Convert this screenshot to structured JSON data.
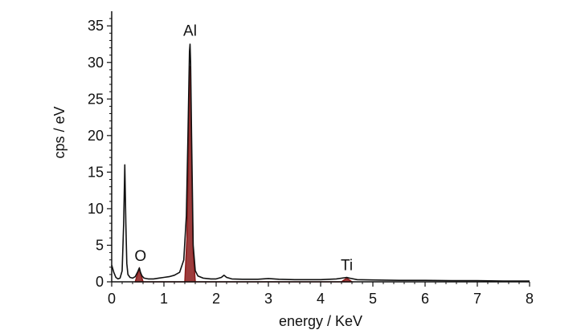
{
  "chart_data": {
    "type": "line",
    "title": "",
    "xlabel": "energy / KeV",
    "ylabel": "cps / eV",
    "xlim": [
      0,
      8
    ],
    "ylim": [
      0,
      37
    ],
    "xticks": [
      0,
      1,
      2,
      3,
      4,
      5,
      6,
      7,
      8
    ],
    "xtick_labels": [
      "0",
      "1",
      "2",
      "3",
      "4",
      "5",
      "6",
      "7",
      "8"
    ],
    "yticks": [
      0,
      5,
      10,
      15,
      20,
      25,
      30,
      35
    ],
    "ytick_labels": [
      "0",
      "5",
      "10",
      "15",
      "20",
      "25",
      "30",
      "35"
    ],
    "grid": false,
    "legend": "none",
    "colors": {
      "spectrum": "#111111",
      "fit": "#8b1a1a",
      "axis": "#111111"
    },
    "series": [
      {
        "name": "",
        "color": "#111111",
        "x": [
          0.0,
          0.04,
          0.08,
          0.12,
          0.16,
          0.2,
          0.23,
          0.25,
          0.27,
          0.29,
          0.31,
          0.35,
          0.4,
          0.45,
          0.5,
          0.53,
          0.55,
          0.58,
          0.62,
          0.7,
          0.8,
          0.9,
          1.0,
          1.1,
          1.2,
          1.3,
          1.38,
          1.43,
          1.46,
          1.48,
          1.49,
          1.5,
          1.51,
          1.53,
          1.56,
          1.6,
          1.65,
          1.75,
          1.9,
          2.0,
          2.1,
          2.15,
          2.2,
          2.3,
          2.5,
          2.8,
          3.0,
          3.2,
          3.5,
          4.0,
          4.3,
          4.45,
          4.5,
          4.55,
          4.7,
          5.0,
          5.5,
          6.0,
          6.5,
          7.0,
          7.5,
          8.0
        ],
        "y": [
          2.3,
          1.3,
          0.6,
          0.4,
          0.5,
          1.5,
          8.0,
          16.0,
          8.0,
          2.5,
          1.0,
          0.6,
          0.5,
          0.7,
          1.4,
          1.9,
          1.3,
          0.8,
          0.5,
          0.4,
          0.4,
          0.5,
          0.6,
          0.7,
          0.9,
          1.3,
          3.0,
          9.0,
          20.0,
          28.0,
          31.5,
          32.5,
          30.0,
          20.0,
          5.0,
          1.5,
          0.8,
          0.5,
          0.4,
          0.4,
          0.6,
          0.9,
          0.6,
          0.4,
          0.35,
          0.35,
          0.45,
          0.35,
          0.3,
          0.3,
          0.4,
          0.55,
          0.6,
          0.5,
          0.3,
          0.25,
          0.2,
          0.2,
          0.15,
          0.15,
          0.1,
          0.1
        ]
      },
      {
        "name": "",
        "color": "#8b1a1a",
        "x": [
          0.45,
          0.5,
          0.53,
          0.55,
          0.6,
          1.4,
          1.44,
          1.47,
          1.49,
          1.5,
          1.51,
          1.53,
          1.56,
          1.6,
          4.4,
          4.5,
          4.6
        ],
        "y": [
          0.0,
          1.2,
          1.8,
          1.2,
          0.0,
          0.0,
          6.0,
          18.0,
          28.0,
          29.5,
          27.0,
          17.0,
          4.0,
          0.0,
          0.0,
          0.5,
          0.0
        ]
      }
    ],
    "annotations": [
      {
        "text": "O",
        "x": 0.55,
        "y": 2.0
      },
      {
        "text": "Al",
        "x": 1.5,
        "y": 32.8
      },
      {
        "text": "Ti",
        "x": 4.5,
        "y": 0.7
      }
    ]
  }
}
